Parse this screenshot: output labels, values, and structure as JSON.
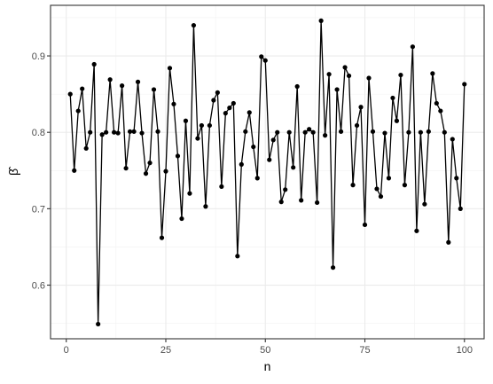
{
  "chart_data": {
    "type": "line",
    "title": "",
    "xlabel": "n",
    "ylabel": "β̂",
    "xlim": [
      -3.95,
      104.95
    ],
    "ylim": [
      0.5298,
      0.9662
    ],
    "x_ticks": [
      0,
      25,
      50,
      75,
      100
    ],
    "x_tick_labels": [
      "0",
      "25",
      "50",
      "75",
      "100"
    ],
    "x_minor_ticks": [
      12.5,
      37.5,
      62.5,
      87.5
    ],
    "y_ticks": [
      0.6,
      0.7,
      0.8,
      0.9
    ],
    "y_tick_labels": [
      "0.6",
      "0.7",
      "0.8",
      "0.9"
    ],
    "y_minor_ticks": [
      0.55,
      0.65,
      0.75,
      0.85,
      0.95
    ],
    "grid": true,
    "legend": "none",
    "markers": true,
    "color": "#000000",
    "x": [
      1,
      2,
      3,
      4,
      5,
      6,
      7,
      8,
      9,
      10,
      11,
      12,
      13,
      14,
      15,
      16,
      17,
      18,
      19,
      20,
      21,
      22,
      23,
      24,
      25,
      26,
      27,
      28,
      29,
      30,
      31,
      32,
      33,
      34,
      35,
      36,
      37,
      38,
      39,
      40,
      41,
      42,
      43,
      44,
      45,
      46,
      47,
      48,
      49,
      50,
      51,
      52,
      53,
      54,
      55,
      56,
      57,
      58,
      59,
      60,
      61,
      62,
      63,
      64,
      65,
      66,
      67,
      68,
      69,
      70,
      71,
      72,
      73,
      74,
      75,
      76,
      77,
      78,
      79,
      80,
      81,
      82,
      83,
      84,
      85,
      86,
      87,
      88,
      89,
      90,
      91,
      92,
      93,
      94,
      95,
      96,
      97,
      98,
      99,
      100
    ],
    "y": [
      0.85,
      0.75,
      0.828,
      0.857,
      0.779,
      0.8,
      0.889,
      0.549,
      0.797,
      0.8,
      0.869,
      0.8,
      0.799,
      0.861,
      0.753,
      0.801,
      0.801,
      0.866,
      0.799,
      0.746,
      0.76,
      0.856,
      0.801,
      0.662,
      0.749,
      0.884,
      0.837,
      0.769,
      0.687,
      0.815,
      0.72,
      0.94,
      0.792,
      0.809,
      0.703,
      0.809,
      0.842,
      0.852,
      0.729,
      0.825,
      0.832,
      0.838,
      0.638,
      0.758,
      0.801,
      0.826,
      0.781,
      0.74,
      0.899,
      0.894,
      0.764,
      0.79,
      0.8,
      0.709,
      0.725,
      0.8,
      0.754,
      0.86,
      0.711,
      0.8,
      0.804,
      0.8,
      0.708,
      0.946,
      0.796,
      0.876,
      0.623,
      0.856,
      0.801,
      0.885,
      0.874,
      0.731,
      0.809,
      0.833,
      0.679,
      0.871,
      0.801,
      0.726,
      0.716,
      0.799,
      0.74,
      0.845,
      0.815,
      0.875,
      0.731,
      0.8,
      0.912,
      0.671,
      0.8,
      0.706,
      0.801,
      0.877,
      0.838,
      0.828,
      0.8,
      0.656,
      0.791,
      0.74,
      0.7,
      0.863
    ]
  }
}
